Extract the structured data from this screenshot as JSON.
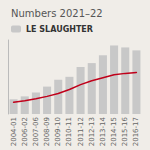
{
  "chart_data": {
    "type": "bar",
    "title": "Numbers 2021–22",
    "categories": [
      "2004-01",
      "2006-02",
      "2007-06",
      "2008-09",
      "2009-10",
      "2010-11",
      "2011-12",
      "2012-13",
      "2013-14",
      "2014-15",
      "2015-16",
      "2016-17"
    ],
    "series": [
      {
        "name": "LE SLAUGHTER",
        "type": "bar",
        "color": "#c8c8c8",
        "values": [
          1.5,
          1.8,
          2.2,
          2.8,
          3.5,
          3.8,
          4.8,
          5.2,
          6.0,
          7.0,
          6.8,
          6.5
        ]
      },
      {
        "type": "line",
        "color": "#c0001a",
        "values": [
          1.2,
          1.35,
          1.55,
          1.8,
          2.1,
          2.5,
          3.0,
          3.4,
          3.7,
          4.0,
          4.15,
          4.25
        ]
      }
    ],
    "ylim": [
      0,
      7.56
    ],
    "tick_labels": "x",
    "grid": false,
    "legend": "upper left"
  }
}
